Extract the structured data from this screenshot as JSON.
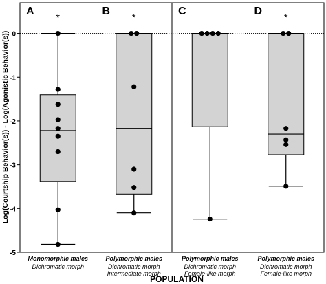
{
  "chart_data": {
    "type": "box",
    "ylabel": "Log(Courtship Behavior(s)) - Log(Agonistic Behavior(s))",
    "xlabel": "POPULATION",
    "ylim": [
      -5,
      0.7
    ],
    "yticks": [
      "0",
      "-1",
      "-2",
      "-3",
      "-4",
      "-5"
    ],
    "reference_line": 0,
    "panels": [
      {
        "letter": "A",
        "significance": "*",
        "group": "Monomorphic males",
        "morph": [
          "Dichromatic morph"
        ],
        "box": {
          "whisker_low": -4.82,
          "q1": -3.38,
          "median": -2.22,
          "q3": -1.4,
          "whisker_high": 0
        },
        "points": [
          0,
          -1.28,
          -1.62,
          -1.97,
          -2.17,
          -2.35,
          -2.7,
          -4.03,
          -4.82
        ]
      },
      {
        "letter": "B",
        "significance": "*",
        "group": "Polymorphic males",
        "morph": [
          "Dichromatic morph",
          "Intermediate morph"
        ],
        "box": {
          "whisker_low": -4.1,
          "q1": -3.67,
          "median": -2.17,
          "q3": 0,
          "whisker_high": 0
        },
        "points": [
          0,
          0,
          -1.22,
          -3.1,
          -3.52,
          -4.1
        ]
      },
      {
        "letter": "C",
        "significance": "",
        "group": "Polymorphic males",
        "morph": [
          "Dichromatic morph",
          "Female-like morph"
        ],
        "box": {
          "whisker_low": -4.24,
          "q1": -2.13,
          "median": 0,
          "q3": 0,
          "whisker_high": 0
        },
        "points": [
          0,
          0,
          0,
          0,
          -4.24
        ]
      },
      {
        "letter": "D",
        "significance": "*",
        "group": "Polymorphic males",
        "morph": [
          "Dichromatic morph",
          "Female-like morph"
        ],
        "box": {
          "whisker_low": -3.49,
          "q1": -2.77,
          "median": -2.3,
          "q3": 0,
          "whisker_high": 0
        },
        "points": [
          0,
          0,
          -2.17,
          -2.43,
          -2.54,
          -3.49
        ]
      }
    ],
    "colors": {
      "box_fill": "#d3d3d3",
      "stroke": "#000000",
      "point": "#000000"
    }
  }
}
